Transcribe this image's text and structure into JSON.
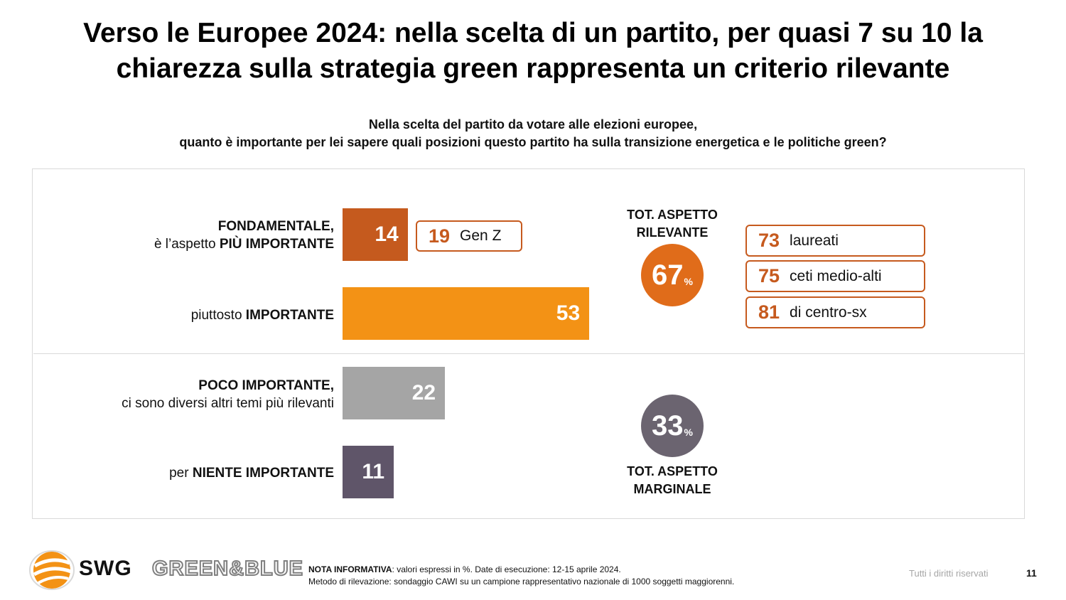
{
  "title_line1": "Verso le Europee 2024: nella scelta di un partito, per quasi 7 su 10 la",
  "title_line2": "chiarezza sulla strategia green rappresenta un criterio rilevante",
  "question_line1": "Nella scelta del partito da votare alle elezioni europee,",
  "question_line2": "quanto è importante per lei sapere quali posizioni questo partito ha sulla transizione energetica e le politiche green?",
  "chart_data": {
    "type": "bar",
    "orientation": "horizontal",
    "unit": "%",
    "categories": [
      {
        "bold": "FONDAMENTALE,",
        "plain": "è l’aspetto ",
        "bold2": "PIÙ IMPORTANTE",
        "value": 14,
        "color": "#c55a1e"
      },
      {
        "plain": "piuttosto ",
        "bold": "IMPORTANTE",
        "value": 53,
        "color": "#f39215"
      },
      {
        "bold": "POCO IMPORTANTE,",
        "plain": "ci sono diversi altri temi più rilevanti",
        "value": 22,
        "color": "#a5a5a5"
      },
      {
        "plain": "per ",
        "bold": "NIENTE IMPORTANTE",
        "value": 11,
        "color": "#5f5569"
      }
    ],
    "callout_genz": {
      "value": "19",
      "label": "Gen Z"
    },
    "total_relevant": {
      "value": "67",
      "unit": "%",
      "label_line1": "TOT. ASPETTO",
      "label_line2": "RILEVANTE",
      "color": "#e06c1a"
    },
    "total_marginal": {
      "value": "33",
      "unit": "%",
      "label_line1": "TOT. ASPETTO",
      "label_line2": "MARGINALE",
      "color": "#6b6470"
    },
    "segments": [
      {
        "value": "73",
        "label": "laureati"
      },
      {
        "value": "75",
        "label": "ceti medio-alti"
      },
      {
        "value": "81",
        "label": "di centro-sx"
      }
    ]
  },
  "footer": {
    "note_label": "NOTA INFORMATIVA",
    "note_text": ": valori espressi in %. Date di esecuzione: 12-15 aprile 2024.",
    "method": "Metodo di rilevazione: sondaggio CAWI su un campione rappresentativo nazionale di 1000 soggetti maggiorenni.",
    "rights": "Tutti i diritti riservati",
    "page": "11",
    "logo_swg": "SWG",
    "logo_greenblue": "GREEN&BLUE"
  }
}
